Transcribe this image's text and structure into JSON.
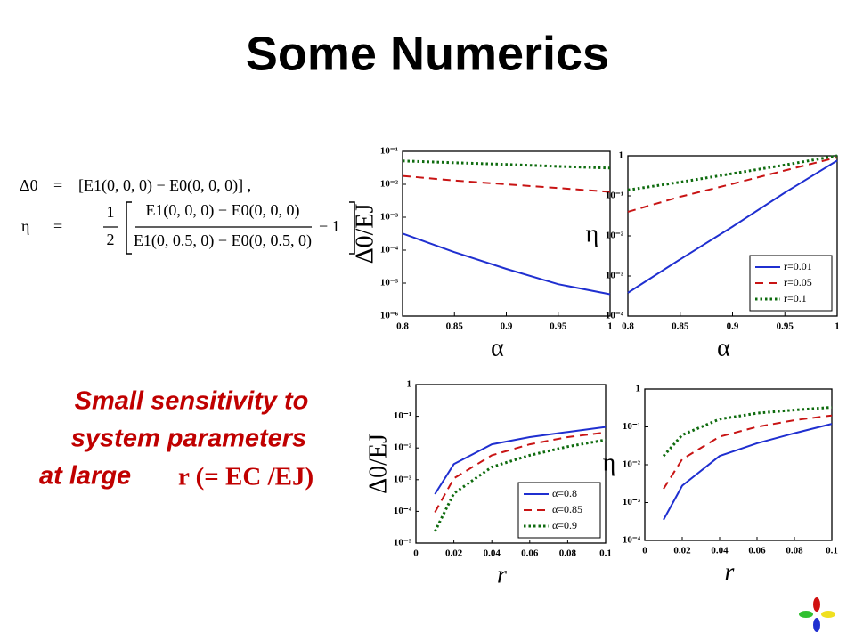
{
  "title": "Some Numerics",
  "equations": {
    "delta_lhs": "Δ0",
    "equals": "=",
    "delta_rhs": "[E1(0, 0, 0) − E0(0, 0, 0)] ,",
    "eta_lhs": "η",
    "half_num": "1",
    "half_den": "2",
    "frac_num": "E1(0, 0, 0) − E0(0, 0, 0)",
    "frac_den": "E1(0, 0.5, 0) − E0(0, 0.5, 0)",
    "tail": "− 1"
  },
  "caption": {
    "lines": [
      "Small sensitivity to",
      "system parameters"
    ],
    "lead": "at large",
    "formula": "r (= EC /EJ)"
  },
  "chart_data": [
    {
      "type": "line",
      "x_label": "α",
      "y_label": "Δ0/EJ",
      "log_y": true,
      "x": [
        0.8,
        0.85,
        0.9,
        0.95,
        1
      ],
      "xlim": [
        0.8,
        1
      ],
      "xticks": [
        0.8,
        0.85,
        0.9,
        0.95,
        1
      ],
      "ylim": [
        1e-06,
        0.1
      ],
      "yticks": [
        {
          "value": 1e-06,
          "label": "10⁻⁶"
        },
        {
          "value": 1e-05,
          "label": "10⁻⁵"
        },
        {
          "value": 0.0001,
          "label": "10⁻⁴"
        },
        {
          "value": 0.001,
          "label": "10⁻³"
        },
        {
          "value": 0.01,
          "label": "10⁻²"
        },
        {
          "value": 0.1,
          "label": "10⁻¹"
        }
      ],
      "series": [
        {
          "color": "#1f2fd0",
          "linestyle": "solid",
          "values": [
            0.00032,
            8.7e-05,
            2.7e-05,
            9.3e-06,
            4.6e-06
          ]
        },
        {
          "color": "#c81414",
          "linestyle": "dashed",
          "values": [
            0.018,
            0.013,
            0.01,
            0.0077,
            0.0059
          ]
        },
        {
          "color": "#0e6b0e",
          "linestyle": "dotted",
          "values": [
            0.051,
            0.045,
            0.04,
            0.035,
            0.031
          ]
        }
      ]
    },
    {
      "type": "line",
      "x_label": "α",
      "y_label": "η",
      "log_y": true,
      "legend": "lower right",
      "x": [
        0.8,
        0.85,
        0.9,
        0.95,
        1
      ],
      "xlim": [
        0.8,
        1
      ],
      "xticks": [
        0.8,
        0.85,
        0.9,
        0.95,
        1
      ],
      "ylim": [
        0.0001,
        1
      ],
      "yticks": [
        {
          "value": 0.0001,
          "label": "10⁻⁴"
        },
        {
          "value": 0.001,
          "label": "10⁻³"
        },
        {
          "value": 0.01,
          "label": "10⁻²"
        },
        {
          "value": 0.1,
          "label": "10⁻¹"
        },
        1
      ],
      "series": [
        {
          "name": "r=0.01",
          "color": "#1f2fd0",
          "linestyle": "solid",
          "values": [
            0.00038,
            0.0026,
            0.017,
            0.12,
            0.76
          ]
        },
        {
          "name": "r=0.05",
          "color": "#c81414",
          "linestyle": "dashed",
          "values": [
            0.04,
            0.095,
            0.2,
            0.43,
            0.91
          ]
        },
        {
          "name": "r=0.1",
          "color": "#0e6b0e",
          "linestyle": "dotted",
          "values": [
            0.14,
            0.22,
            0.36,
            0.59,
            1
          ]
        }
      ]
    },
    {
      "type": "line",
      "x_label": "r",
      "y_label": "Δ0/EJ",
      "log_y": true,
      "legend": "lower right",
      "x": [
        0.01,
        0.02,
        0.04,
        0.06,
        0.08,
        0.1
      ],
      "xlim": [
        0,
        0.1
      ],
      "xticks": [
        0,
        0.02,
        0.04,
        0.06,
        0.08,
        0.1
      ],
      "ylim": [
        1e-05,
        1
      ],
      "yticks": [
        {
          "value": 1e-05,
          "label": "10⁻⁵"
        },
        {
          "value": 0.0001,
          "label": "10⁻⁴"
        },
        {
          "value": 0.001,
          "label": "10⁻³"
        },
        {
          "value": 0.01,
          "label": "10⁻²"
        },
        {
          "value": 0.1,
          "label": "10⁻¹"
        },
        1
      ],
      "series": [
        {
          "name": "α=0.8",
          "color": "#1f2fd0",
          "linestyle": "solid",
          "values": [
            0.00035,
            0.0031,
            0.013,
            0.022,
            0.032,
            0.046
          ]
        },
        {
          "name": "α=0.85",
          "color": "#c81414",
          "linestyle": "dashed",
          "values": [
            9.3e-05,
            0.0011,
            0.0059,
            0.013,
            0.022,
            0.031
          ]
        },
        {
          "name": "α=0.9",
          "color": "#0e6b0e",
          "linestyle": "dotted",
          "values": [
            2.3e-05,
            0.00037,
            0.0025,
            0.0059,
            0.011,
            0.018
          ]
        }
      ]
    },
    {
      "type": "line",
      "x_label": "r",
      "y_label": "η",
      "log_y": true,
      "x": [
        0.01,
        0.02,
        0.04,
        0.06,
        0.08,
        0.1
      ],
      "xlim": [
        0,
        0.1
      ],
      "xticks": [
        0,
        0.02,
        0.04,
        0.06,
        0.08,
        0.1
      ],
      "ylim": [
        0.0001,
        1
      ],
      "yticks": [
        {
          "value": 0.0001,
          "label": "10⁻⁴"
        },
        {
          "value": 0.001,
          "label": "10⁻³"
        },
        {
          "value": 0.01,
          "label": "10⁻²"
        },
        {
          "value": 0.1,
          "label": "10⁻¹"
        },
        1
      ],
      "series": [
        {
          "color": "#1f2fd0",
          "linestyle": "solid",
          "values": [
            0.00035,
            0.0028,
            0.017,
            0.037,
            0.068,
            0.12
          ]
        },
        {
          "color": "#c81414",
          "linestyle": "dashed",
          "values": [
            0.0023,
            0.014,
            0.055,
            0.1,
            0.15,
            0.2
          ]
        },
        {
          "color": "#0e6b0e",
          "linestyle": "dotted",
          "values": [
            0.017,
            0.061,
            0.16,
            0.23,
            0.28,
            0.33
          ]
        }
      ]
    }
  ]
}
